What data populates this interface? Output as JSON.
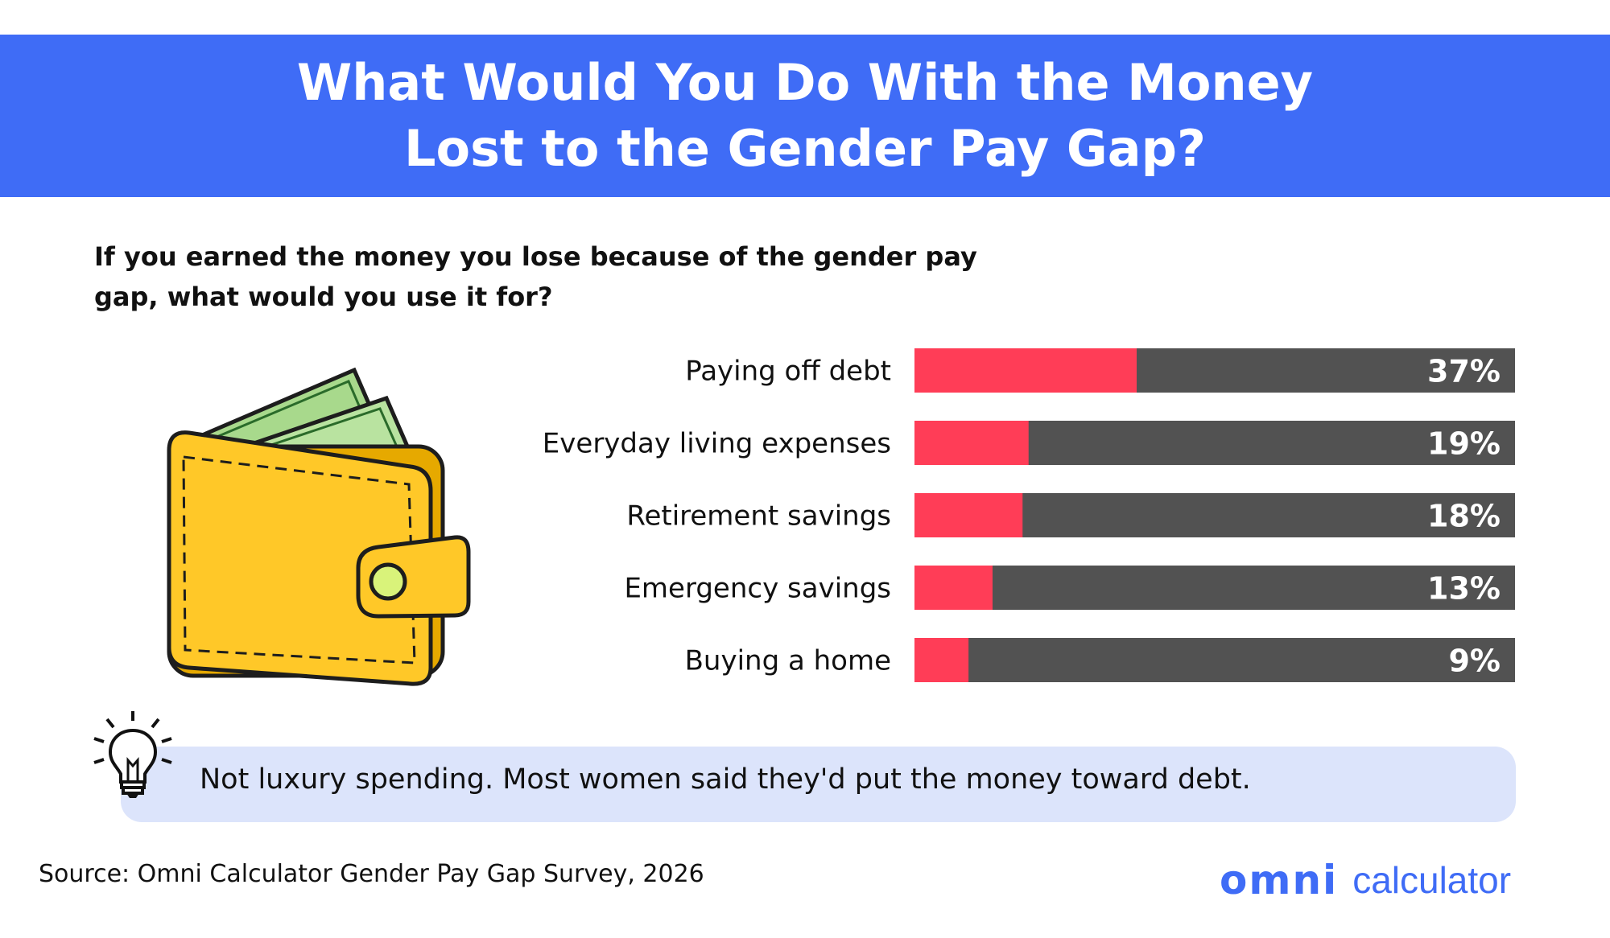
{
  "header": {
    "title_line1": "What Would You Do With the Money",
    "title_line2": "Lost to the Gender Pay Gap?"
  },
  "question": {
    "line1": "If you earned the money you lose because of the gender pay",
    "line2": "gap, what would you use it for?"
  },
  "chart_data": {
    "type": "bar",
    "orientation": "horizontal",
    "categories": [
      "Paying off debt",
      "Everyday living expenses",
      "Retirement savings",
      "Emergency savings",
      "Buying a home"
    ],
    "values": [
      37,
      19,
      18,
      13,
      9
    ],
    "value_labels": [
      "37%",
      "19%",
      "18%",
      "13%",
      "9%"
    ],
    "xlim": [
      0,
      100
    ],
    "colors": {
      "fill": "#ff3d57",
      "track": "#525252"
    }
  },
  "tip": {
    "text": "Not luxury spending. Most women said they'd put the money toward debt.",
    "icon": "lightbulb-icon"
  },
  "footer": {
    "source": "Source: Omni Calculator Gender Pay Gap Survey, 2026",
    "logo_word": "omni",
    "logo_sub": "calculator"
  },
  "colors": {
    "banner": "#3f6cf6",
    "tip_background": "#dce4fb",
    "brand": "#3f6cf6"
  }
}
